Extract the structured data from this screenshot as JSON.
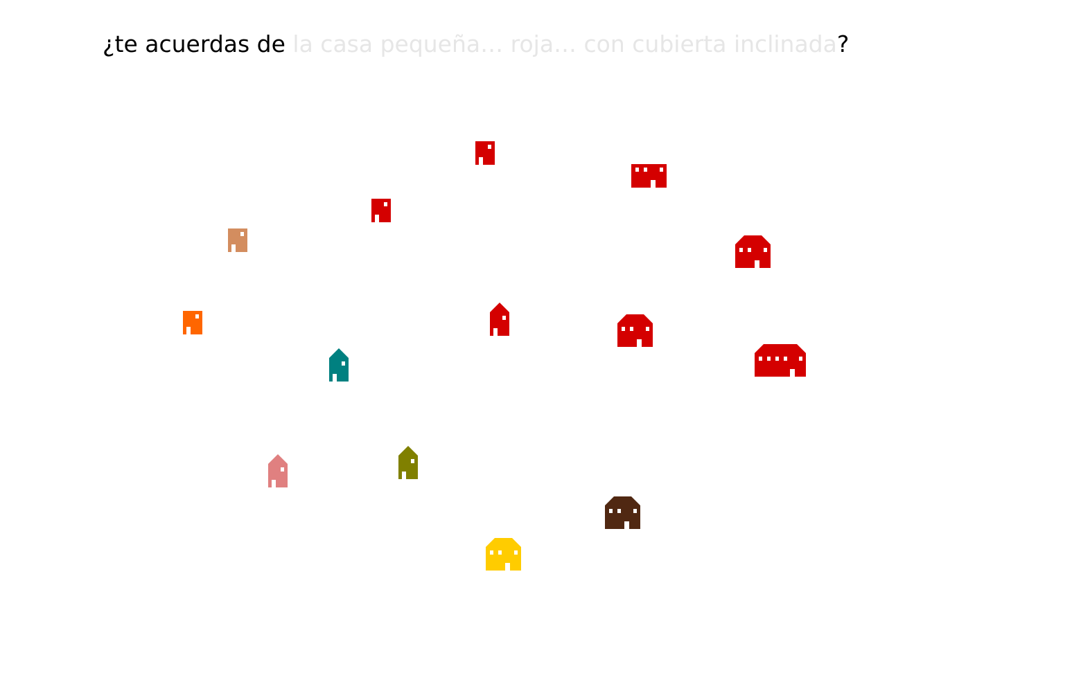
{
  "prompt": {
    "prefix": "¿te acuerdas de ",
    "target": "la casa pequeña… roja… con cubierta inclinada",
    "suffix": "?"
  },
  "colors": {
    "red": "#d40000",
    "tan": "#d38d5f",
    "orange": "#ff6600",
    "teal": "#008080",
    "pink": "#e08080",
    "olive": "#808000",
    "brown": "#502812",
    "yellow": "#ffcc00",
    "faded_text": "#e6e6e6"
  },
  "houses": [
    {
      "color": "red",
      "size": "small",
      "roof": "flat"
    },
    {
      "color": "red",
      "size": "medium",
      "roof": "flat"
    },
    {
      "color": "red",
      "size": "small",
      "roof": "flat"
    },
    {
      "color": "tan",
      "size": "small",
      "roof": "flat"
    },
    {
      "color": "red",
      "size": "medium",
      "roof": "sloped"
    },
    {
      "color": "orange",
      "size": "small",
      "roof": "flat"
    },
    {
      "color": "red",
      "size": "small",
      "roof": "sloped"
    },
    {
      "color": "red",
      "size": "medium",
      "roof": "sloped"
    },
    {
      "color": "red",
      "size": "large",
      "roof": "sloped"
    },
    {
      "color": "teal",
      "size": "small",
      "roof": "sloped"
    },
    {
      "color": "pink",
      "size": "small",
      "roof": "sloped"
    },
    {
      "color": "olive",
      "size": "small",
      "roof": "sloped"
    },
    {
      "color": "brown",
      "size": "medium",
      "roof": "sloped"
    },
    {
      "color": "yellow",
      "size": "medium",
      "roof": "sloped"
    }
  ]
}
